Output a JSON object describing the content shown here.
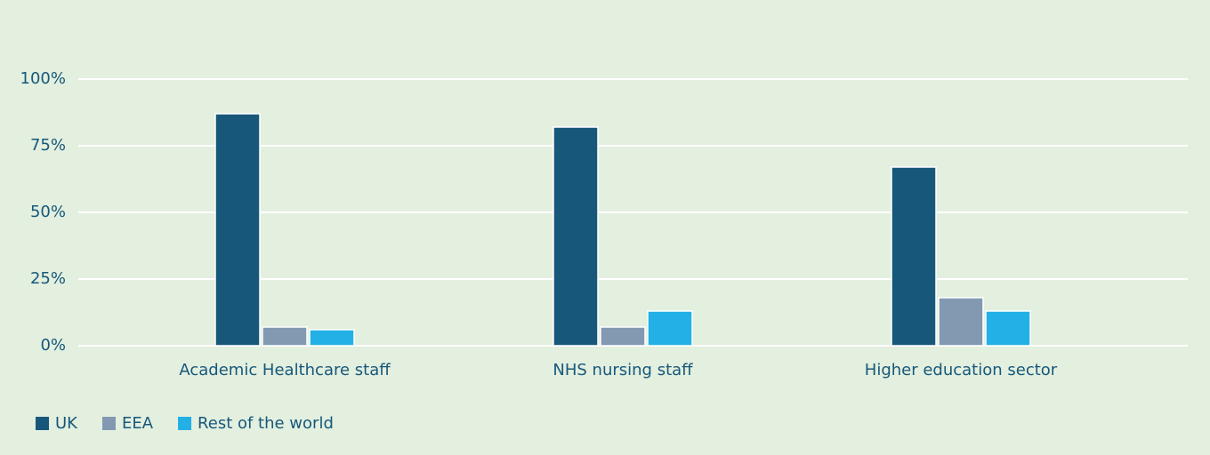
{
  "chart_data": {
    "type": "bar",
    "categories": [
      "Academic Healthcare staff",
      "NHS nursing staff",
      "Higher education sector"
    ],
    "series": [
      {
        "name": "UK",
        "color": "#17587a",
        "values": [
          87,
          82,
          67
        ]
      },
      {
        "name": "EEA",
        "color": "#8299b1",
        "values": [
          7,
          7,
          18
        ]
      },
      {
        "name": "Rest of the world",
        "color": "#22b0e6",
        "values": [
          6,
          13,
          13
        ]
      }
    ],
    "ylim": [
      0,
      100
    ],
    "yticks": [
      {
        "value": 0,
        "label": "0%"
      },
      {
        "value": 25,
        "label": "25%"
      },
      {
        "value": 50,
        "label": "50%"
      },
      {
        "value": 75,
        "label": "75%"
      },
      {
        "value": 100,
        "label": "100%"
      }
    ],
    "grid": true,
    "legend": "bottom-left"
  }
}
